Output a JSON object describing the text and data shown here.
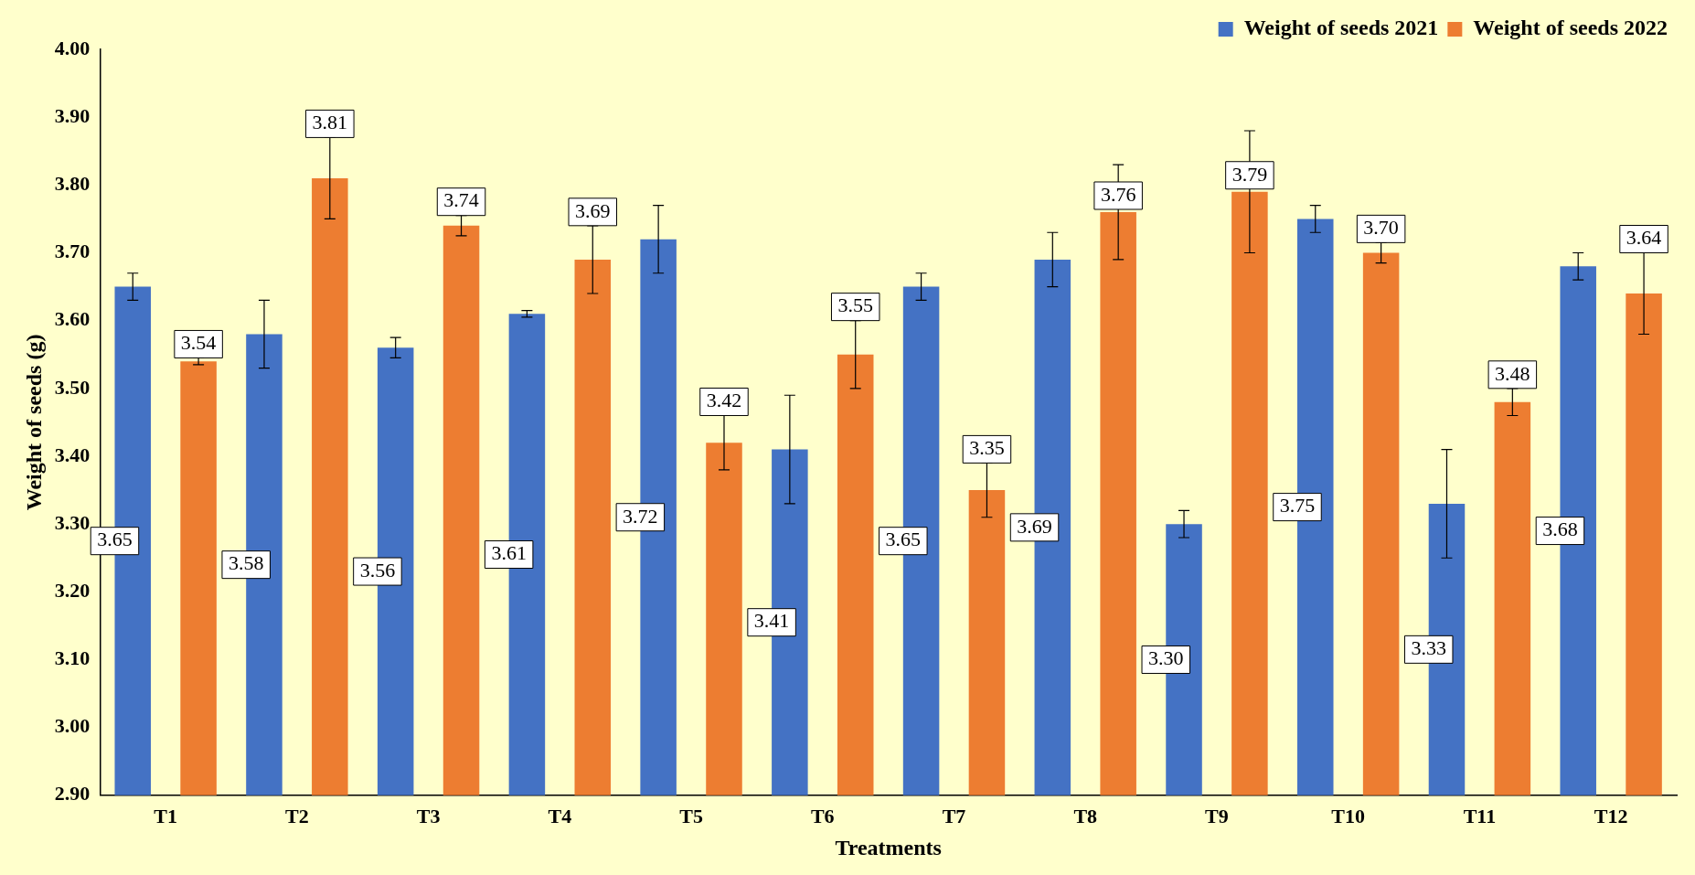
{
  "chart_data": {
    "type": "bar",
    "xlabel": "Treatments",
    "ylabel": "Weight of seeds (g)",
    "categories": [
      "T1",
      "T2",
      "T3",
      "T4",
      "T5",
      "T6",
      "T7",
      "T8",
      "T9",
      "T10",
      "T11",
      "T12"
    ],
    "series": [
      {
        "name": "Weight of seeds 2021",
        "color": "#4472c4",
        "values": [
          3.65,
          3.58,
          3.56,
          3.61,
          3.72,
          3.41,
          3.65,
          3.69,
          3.3,
          3.75,
          3.33,
          3.68
        ],
        "errors": [
          0.02,
          0.05,
          0.015,
          0.005,
          0.05,
          0.08,
          0.02,
          0.04,
          0.02,
          0.02,
          0.08,
          0.02
        ],
        "value_labels": [
          "3.65",
          "3.58",
          "3.56",
          "3.61",
          "3.72",
          "3.41",
          "3.65",
          "3.69",
          "3.30",
          "3.75",
          "3.33",
          "3.68"
        ]
      },
      {
        "name": "Weight of seeds 2022",
        "color": "#ed7d31",
        "values": [
          3.54,
          3.81,
          3.74,
          3.69,
          3.42,
          3.55,
          3.35,
          3.76,
          3.79,
          3.7,
          3.48,
          3.64
        ],
        "errors": [
          0.005,
          0.06,
          0.015,
          0.05,
          0.04,
          0.05,
          0.04,
          0.07,
          0.09,
          0.015,
          0.02,
          0.06
        ],
        "value_labels": [
          "3.54",
          "3.81",
          "3.74",
          "3.69",
          "3.42",
          "3.55",
          "3.35",
          "3.76",
          "3.79",
          "3.70",
          "3.48",
          "3.64"
        ]
      }
    ],
    "ylim": [
      2.9,
      4.0
    ],
    "yticks": [
      {
        "value": 2.9,
        "label": "2.90"
      },
      {
        "value": 3.0,
        "label": "3.00"
      },
      {
        "value": 3.1,
        "label": "3.10"
      },
      {
        "value": 3.2,
        "label": "3.20"
      },
      {
        "value": 3.3,
        "label": "3.30"
      },
      {
        "value": 3.4,
        "label": "3.40"
      },
      {
        "value": 3.5,
        "label": "3.50"
      },
      {
        "value": 3.6,
        "label": "3.60"
      },
      {
        "value": 3.7,
        "label": "3.70"
      },
      {
        "value": 3.8,
        "label": "3.80"
      },
      {
        "value": 3.9,
        "label": "3.90"
      },
      {
        "value": 4.0,
        "label": "4.00"
      }
    ],
    "grid": false,
    "legend": "top right"
  }
}
